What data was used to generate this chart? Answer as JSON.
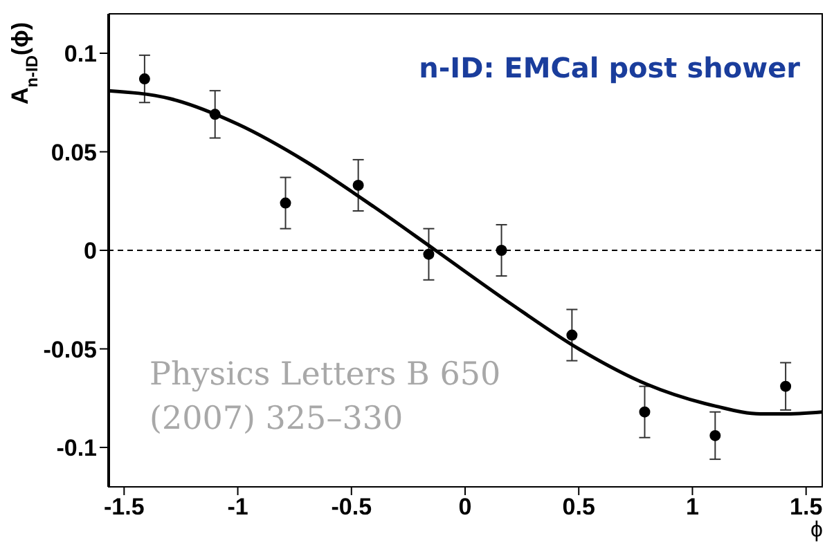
{
  "chart_data": {
    "type": "scatter",
    "xlabel": "ϕ",
    "ylabel": "A$_{n-ID}$(ϕ)",
    "annotations": [
      "n-ID: EMCal post shower",
      "Physics Letters B 650 (2007) 325–330"
    ],
    "xlim": [
      -1.571,
      1.571
    ],
    "xticks": [
      {
        "value": -1.5,
        "label": "-1.5"
      },
      {
        "value": -1,
        "label": "-1"
      },
      {
        "value": -0.5,
        "label": "-0.5"
      },
      {
        "value": 0,
        "label": "0"
      },
      {
        "value": 0.5,
        "label": "0.5"
      },
      {
        "value": 1,
        "label": "1"
      },
      {
        "value": 1.5,
        "label": "1.5"
      }
    ],
    "ylim": [
      -0.12,
      0.12
    ],
    "yticks": [
      {
        "value": -0.1,
        "label": "-0.1"
      },
      {
        "value": -0.05,
        "label": "-0.05"
      },
      {
        "value": 0,
        "label": "0"
      },
      {
        "value": 0.05,
        "label": "0.05"
      },
      {
        "value": 0.1,
        "label": "0.1"
      }
    ],
    "marker": "circle",
    "ref_lines": [
      {
        "axis": "y",
        "value": 0,
        "line_style": "dashed",
        "color": "#000000"
      }
    ],
    "series": [
      {
        "color": "#000000",
        "x": [
          -1.41,
          -1.1,
          -0.79,
          -0.47,
          -0.16,
          0.16,
          0.47,
          0.79,
          1.1,
          1.41
        ],
        "values": [
          0.087,
          0.069,
          0.024,
          0.033,
          -0.002,
          0.0,
          -0.043,
          -0.082,
          -0.094,
          -0.069
        ],
        "errors": [
          0.012,
          0.012,
          0.013,
          0.013,
          0.013,
          0.013,
          0.013,
          0.013,
          0.012,
          0.012
        ]
      },
      {
        "type": "line",
        "color": "#000000",
        "marker": "none",
        "line_style": "solid",
        "x": [
          -1.571,
          -1.3,
          -1.0,
          -0.7,
          -0.4,
          -0.13,
          0.2,
          0.5,
          0.8,
          1.1,
          1.3,
          1.4,
          1.571
        ],
        "values": [
          0.081,
          0.077,
          0.064,
          0.045,
          0.022,
          0.0,
          -0.027,
          -0.05,
          -0.068,
          -0.079,
          -0.083,
          -0.083,
          -0.082
        ]
      }
    ]
  }
}
